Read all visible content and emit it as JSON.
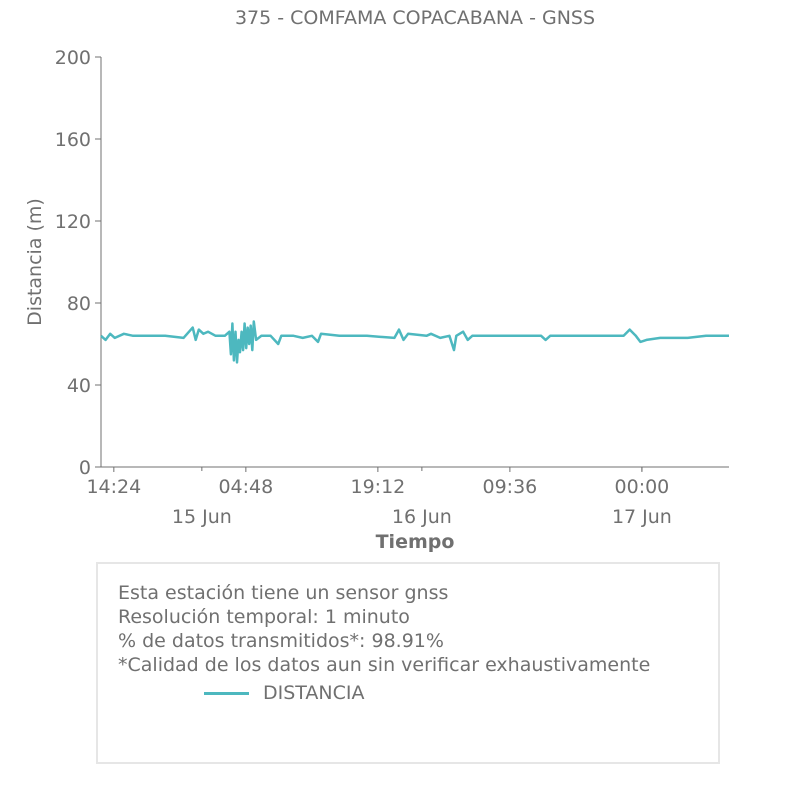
{
  "chart_data": {
    "type": "line",
    "title": "375 - COMFAMA COPACABANA - GNSS",
    "xlabel": "Tiempo",
    "ylabel": "Distancia (m)",
    "ylim": [
      0,
      200
    ],
    "yticks": [
      "0",
      "40",
      "80",
      "120",
      "160",
      "200"
    ],
    "xlim": [
      "2024-06-14T13:00",
      "2024-06-17T09:30"
    ],
    "xticks": [
      {
        "t": "2024-06-14T14:24",
        "label": "14:24"
      },
      {
        "t": "2024-06-15T04:48",
        "label": "04:48"
      },
      {
        "t": "2024-06-15T19:12",
        "label": "19:12"
      },
      {
        "t": "2024-06-16T09:36",
        "label": "09:36"
      },
      {
        "t": "2024-06-17T00:00",
        "label": "00:00"
      }
    ],
    "date_labels": [
      {
        "t": "2024-06-15T00:00",
        "label": "15 Jun"
      },
      {
        "t": "2024-06-16T00:00",
        "label": "16 Jun"
      },
      {
        "t": "2024-06-17T00:00",
        "label": "17 Jun"
      }
    ],
    "grid": false,
    "series": [
      {
        "name": "DISTANCIA",
        "color": "#4db8bf",
        "points": [
          [
            "2024-06-14T13:00",
            64
          ],
          [
            "2024-06-14T13:30",
            62
          ],
          [
            "2024-06-14T14:00",
            65
          ],
          [
            "2024-06-14T14:30",
            63
          ],
          [
            "2024-06-14T15:30",
            65
          ],
          [
            "2024-06-14T16:30",
            64
          ],
          [
            "2024-06-14T18:00",
            64
          ],
          [
            "2024-06-14T20:00",
            64
          ],
          [
            "2024-06-14T22:00",
            63
          ],
          [
            "2024-06-14T23:00",
            68
          ],
          [
            "2024-06-14T23:20",
            62
          ],
          [
            "2024-06-14T23:40",
            67
          ],
          [
            "2024-06-15T00:10",
            65
          ],
          [
            "2024-06-15T00:40",
            66
          ],
          [
            "2024-06-15T01:30",
            64
          ],
          [
            "2024-06-15T02:30",
            64
          ],
          [
            "2024-06-15T03:00",
            66
          ],
          [
            "2024-06-15T03:10",
            55
          ],
          [
            "2024-06-15T03:20",
            70
          ],
          [
            "2024-06-15T03:30",
            52
          ],
          [
            "2024-06-15T03:40",
            66
          ],
          [
            "2024-06-15T03:50",
            51
          ],
          [
            "2024-06-15T04:00",
            62
          ],
          [
            "2024-06-15T04:10",
            56
          ],
          [
            "2024-06-15T04:20",
            66
          ],
          [
            "2024-06-15T04:30",
            57
          ],
          [
            "2024-06-15T04:40",
            70
          ],
          [
            "2024-06-15T04:50",
            58
          ],
          [
            "2024-06-15T05:00",
            68
          ],
          [
            "2024-06-15T05:10",
            60
          ],
          [
            "2024-06-15T05:20",
            69
          ],
          [
            "2024-06-15T05:30",
            57
          ],
          [
            "2024-06-15T05:40",
            71
          ],
          [
            "2024-06-15T05:55",
            62
          ],
          [
            "2024-06-15T06:30",
            64
          ],
          [
            "2024-06-15T07:30",
            64
          ],
          [
            "2024-06-15T08:20",
            60
          ],
          [
            "2024-06-15T08:40",
            64
          ],
          [
            "2024-06-15T10:00",
            64
          ],
          [
            "2024-06-15T11:00",
            63
          ],
          [
            "2024-06-15T12:00",
            64
          ],
          [
            "2024-06-15T12:40",
            61
          ],
          [
            "2024-06-15T13:00",
            65
          ],
          [
            "2024-06-15T15:00",
            64
          ],
          [
            "2024-06-15T18:00",
            64
          ],
          [
            "2024-06-15T21:00",
            63
          ],
          [
            "2024-06-15T21:30",
            67
          ],
          [
            "2024-06-15T22:00",
            62
          ],
          [
            "2024-06-15T22:30",
            65
          ],
          [
            "2024-06-16T00:30",
            64
          ],
          [
            "2024-06-16T01:00",
            65
          ],
          [
            "2024-06-16T02:00",
            63
          ],
          [
            "2024-06-16T03:00",
            64
          ],
          [
            "2024-06-16T03:30",
            57
          ],
          [
            "2024-06-16T03:45",
            64
          ],
          [
            "2024-06-16T04:30",
            66
          ],
          [
            "2024-06-16T05:00",
            62
          ],
          [
            "2024-06-16T05:30",
            64
          ],
          [
            "2024-06-16T08:00",
            64
          ],
          [
            "2024-06-16T11:00",
            64
          ],
          [
            "2024-06-16T13:00",
            64
          ],
          [
            "2024-06-16T13:30",
            62
          ],
          [
            "2024-06-16T14:00",
            64
          ],
          [
            "2024-06-16T17:00",
            64
          ],
          [
            "2024-06-16T20:00",
            64
          ],
          [
            "2024-06-16T22:00",
            64
          ],
          [
            "2024-06-16T22:40",
            67
          ],
          [
            "2024-06-16T23:20",
            64
          ],
          [
            "2024-06-16T23:50",
            61
          ],
          [
            "2024-06-17T00:30",
            62
          ],
          [
            "2024-06-17T02:00",
            63
          ],
          [
            "2024-06-17T05:00",
            63
          ],
          [
            "2024-06-17T07:00",
            64
          ],
          [
            "2024-06-17T09:30",
            64
          ]
        ]
      }
    ]
  },
  "info": {
    "line1": "Esta estación tiene un sensor gnss",
    "line2": "Resolución temporal: 1 minuto",
    "line3": "% de datos transmitidos*: 98.91%",
    "line4": "*Calidad de los datos aun sin verificar exhaustivamente"
  },
  "legend": {
    "label": "DISTANCIA",
    "color": "#4db8bf"
  }
}
